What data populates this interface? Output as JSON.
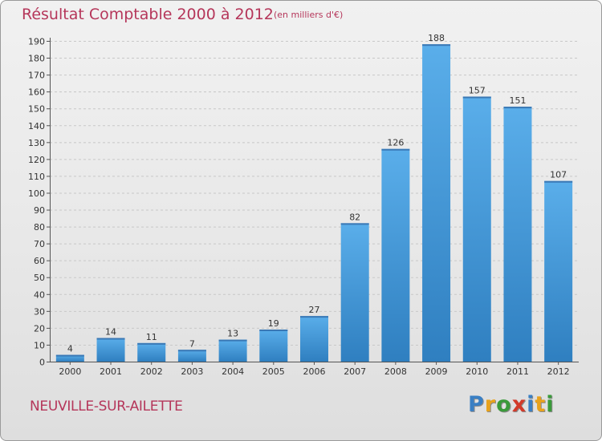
{
  "header": {
    "title": "Résultat Comptable 2000 à 2012",
    "subtitle": "(en milliers d'€)"
  },
  "footer": {
    "commune": "NEUVILLE-SUR-AILETTE",
    "logo": "Proxiti",
    "logo_letters": [
      {
        "ch": "P",
        "color": "#3a7fc4"
      },
      {
        "ch": "r",
        "color": "#e8a21c"
      },
      {
        "ch": "o",
        "color": "#3a9a3a"
      },
      {
        "ch": "x",
        "color": "#d23a2a"
      },
      {
        "ch": "i",
        "color": "#3a7fc4"
      },
      {
        "ch": "t",
        "color": "#e8a21c"
      },
      {
        "ch": "i",
        "color": "#3a9a3a"
      }
    ]
  },
  "colors": {
    "title": "#b5365a",
    "bar_top": "#5aaeea",
    "bar_bottom": "#2f7fc0",
    "grid": "#c8c8c8"
  },
  "chart_data": {
    "type": "bar",
    "title": "Résultat Comptable 2000 à 2012",
    "subtitle": "(en milliers d'€)",
    "categories": [
      "2000",
      "2001",
      "2002",
      "2003",
      "2004",
      "2005",
      "2006",
      "2007",
      "2008",
      "2009",
      "2010",
      "2011",
      "2012"
    ],
    "values": [
      4,
      14,
      11,
      7,
      13,
      19,
      27,
      82,
      126,
      188,
      157,
      151,
      107
    ],
    "ylim": [
      0,
      190
    ],
    "yticks": [
      0,
      10,
      20,
      30,
      40,
      50,
      60,
      70,
      80,
      90,
      100,
      110,
      120,
      130,
      140,
      150,
      160,
      170,
      180,
      190
    ],
    "grid": true,
    "data_labels": true
  }
}
